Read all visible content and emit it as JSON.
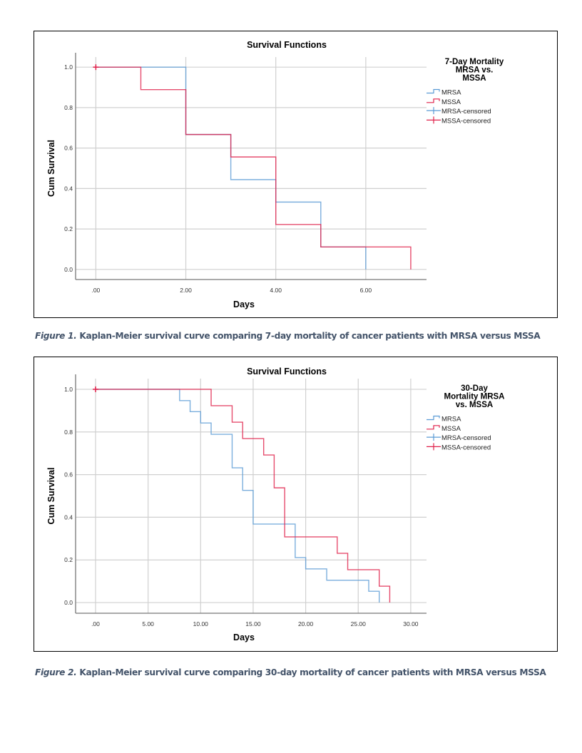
{
  "chart_data": [
    {
      "type": "line",
      "subtype": "kaplan-meier-step",
      "title": "Survival Functions",
      "xlabel": "Days",
      "ylabel": "Cum Survival",
      "xlim": [
        -0.45,
        7.35
      ],
      "ylim": [
        -0.05,
        1.05
      ],
      "x_ticks": [
        0,
        2,
        4,
        6
      ],
      "x_tick_labels": [
        ".00",
        "2.00",
        "4.00",
        "6.00"
      ],
      "y_ticks": [
        0,
        0.2,
        0.4,
        0.6,
        0.8,
        1.0
      ],
      "y_tick_labels": [
        "0.0",
        "0.2",
        "0.4",
        "0.6",
        "0.8",
        "1.0"
      ],
      "grid": true,
      "legend": {
        "title_lines": [
          "7-Day Mortality",
          "MRSA vs.",
          "MSSA"
        ],
        "placement": "right",
        "entries": [
          "MRSA",
          "MSSA",
          "MRSA-censored",
          "MSSA-censored"
        ]
      },
      "series": [
        {
          "name": "MRSA",
          "color": "#5b9bd5",
          "x": [
            0,
            2,
            3,
            4,
            5,
            6
          ],
          "y": [
            1.0,
            0.667,
            0.444,
            0.333,
            0.111,
            0.0
          ]
        },
        {
          "name": "MSSA",
          "color": "#e0204a",
          "x": [
            0,
            1,
            2,
            3,
            4,
            5,
            7
          ],
          "y": [
            1.0,
            0.889,
            0.667,
            0.556,
            0.222,
            0.111,
            0.0
          ]
        }
      ],
      "censored": [
        {
          "series": "MSSA",
          "x": 0,
          "y": 1.0
        }
      ]
    },
    {
      "type": "line",
      "subtype": "kaplan-meier-step",
      "title": "Survival Functions",
      "xlabel": "Days",
      "ylabel": "Cum Survival",
      "xlim": [
        -1.9,
        31.5
      ],
      "ylim": [
        -0.05,
        1.05
      ],
      "x_ticks": [
        0,
        5,
        10,
        15,
        20,
        25,
        30
      ],
      "x_tick_labels": [
        ".00",
        "5.00",
        "10.00",
        "15.00",
        "20.00",
        "25.00",
        "30.00"
      ],
      "y_ticks": [
        0,
        0.2,
        0.4,
        0.6,
        0.8,
        1.0
      ],
      "y_tick_labels": [
        "0.0",
        "0.2",
        "0.4",
        "0.6",
        "0.8",
        "1.0"
      ],
      "grid": true,
      "legend": {
        "title_lines": [
          "30-Day",
          "Mortality MRSA",
          "vs. MSSA"
        ],
        "placement": "right",
        "entries": [
          "MRSA",
          "MSSA",
          "MRSA-censored",
          "MSSA-censored"
        ]
      },
      "series": [
        {
          "name": "MRSA",
          "color": "#5b9bd5",
          "x": [
            0,
            8,
            9,
            10,
            11,
            13,
            14,
            15,
            19,
            20,
            22,
            26,
            27
          ],
          "y": [
            1.0,
            0.947,
            0.895,
            0.842,
            0.789,
            0.632,
            0.526,
            0.368,
            0.211,
            0.158,
            0.105,
            0.053,
            0.0
          ]
        },
        {
          "name": "MSSA",
          "color": "#e0204a",
          "x": [
            0,
            11,
            13,
            14,
            16,
            17,
            18,
            23,
            24,
            27,
            28
          ],
          "y": [
            1.0,
            0.923,
            0.846,
            0.769,
            0.692,
            0.538,
            0.308,
            0.231,
            0.154,
            0.077,
            0.0
          ]
        }
      ],
      "censored": [
        {
          "series": "MSSA",
          "x": 0,
          "y": 1.0
        }
      ]
    }
  ],
  "captions": [
    {
      "label": "Figure 1.",
      "text": "Kaplan-Meier survival curve comparing 7-day mortality of cancer patients with MRSA versus MSSA"
    },
    {
      "label": "Figure 2.",
      "text": "Kaplan-Meier survival curve comparing 30-day mortality of cancer patients with MRSA versus MSSA"
    }
  ]
}
